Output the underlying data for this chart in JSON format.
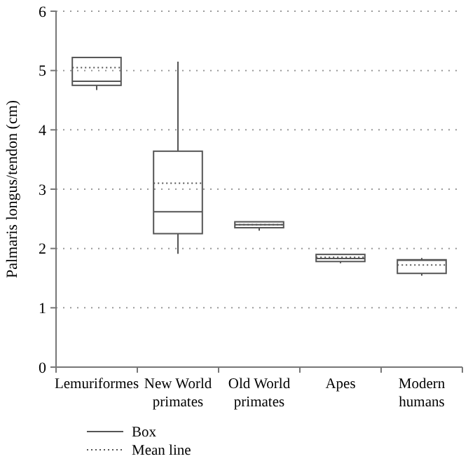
{
  "chart_data": {
    "type": "box",
    "ylabel": "Palmaris longus/tendon (cm)",
    "categories": [
      "Lemuriformes",
      "New World primates",
      "Old World primates",
      "Apes",
      "Modern humans"
    ],
    "series": [
      {
        "name": "Box",
        "color": "#555555",
        "boxes": [
          {
            "low": 4.67,
            "q1": 4.75,
            "median": 4.82,
            "q3": 5.22,
            "high": 5.22,
            "mean": 5.05
          },
          {
            "low": 1.91,
            "q1": 2.25,
            "median": 2.62,
            "q3": 3.64,
            "high": 5.15,
            "mean": 3.1
          },
          {
            "low": 2.3,
            "q1": 2.35,
            "median": 2.4,
            "q3": 2.45,
            "high": 2.45,
            "mean": 2.4
          },
          {
            "low": 1.75,
            "q1": 1.78,
            "median": 1.83,
            "q3": 1.9,
            "high": 1.9,
            "mean": 1.85
          },
          {
            "low": 1.54,
            "q1": 1.58,
            "median": 1.8,
            "q3": 1.81,
            "high": 1.84,
            "mean": 1.72
          }
        ]
      }
    ],
    "annotations": [
      "Mean line"
    ],
    "ylim": [
      0,
      6
    ],
    "yticks": [
      0,
      1,
      2,
      3,
      4,
      5,
      6
    ],
    "grid": "y",
    "legend": "bottom"
  }
}
